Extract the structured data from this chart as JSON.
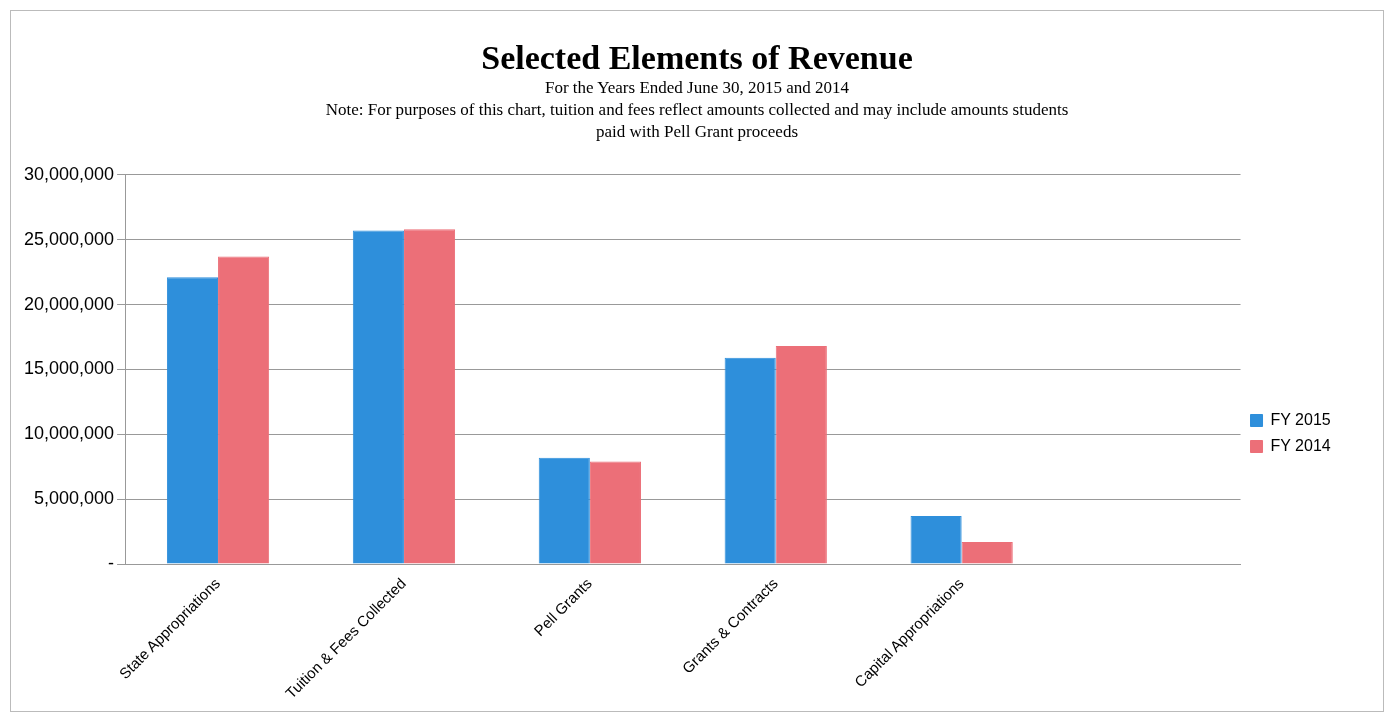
{
  "chart_data": {
    "type": "bar",
    "title": "Selected Elements of Revenue",
    "subtitle": "For the Years Ended June 30, 2015  and  2014",
    "annotations": [
      "Note: For purposes of this chart, tuition and fees reflect amounts collected and may include amounts students paid with Pell Grant proceeds"
    ],
    "categories": [
      "State Appropriations",
      "Tuition & Fees Collected",
      "Pell Grants",
      "Grants & Contracts",
      "Capital Appropriations",
      null
    ],
    "series": [
      {
        "name": "FY 2015",
        "color": "#2e8fdb",
        "values": [
          22100000,
          25700000,
          8200000,
          15900000,
          3700000,
          null
        ]
      },
      {
        "name": "FY 2014",
        "color": "#ec6f78",
        "values": [
          23700000,
          25800000,
          7900000,
          16800000,
          1700000,
          null
        ]
      }
    ],
    "ylim": [
      0,
      30000000
    ],
    "yticks": [
      {
        "value": 0,
        "label": "-"
      },
      {
        "value": 5000000,
        "label": "5,000,000"
      },
      {
        "value": 10000000,
        "label": "10,000,000"
      },
      {
        "value": 15000000,
        "label": "15,000,000"
      },
      {
        "value": 20000000,
        "label": "20,000,000"
      },
      {
        "value": 25000000,
        "label": "25,000,000"
      },
      {
        "value": 30000000,
        "label": "30,000,000"
      }
    ],
    "grid": "y",
    "legend": "right"
  }
}
